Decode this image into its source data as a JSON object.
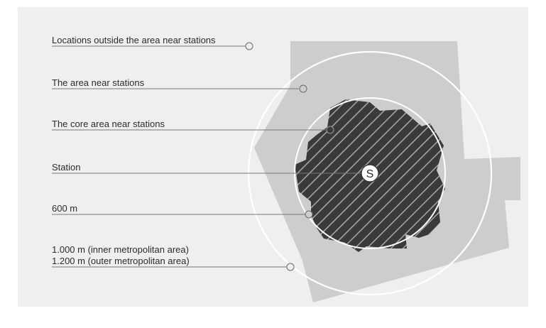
{
  "diagram": {
    "labels": {
      "outside": "Locations outside the area near stations",
      "area": "The area near stations",
      "core": "The core area near stations",
      "station": "Station",
      "radius_600": "600 m",
      "radius_1000": "1.000 m (inner metropolitan area)",
      "radius_1200": "1.200 m (outer metropolitan area)"
    },
    "station_symbol": "S",
    "colors": {
      "background_panel": "#efefef",
      "area_fill": "#cdcdcd",
      "core_fill": "#3a3a3a",
      "hatch_line": "#9a9a9a",
      "circle_stroke": "#ffffff",
      "leader_line": "#777777",
      "text": "#2b2b2b"
    }
  }
}
